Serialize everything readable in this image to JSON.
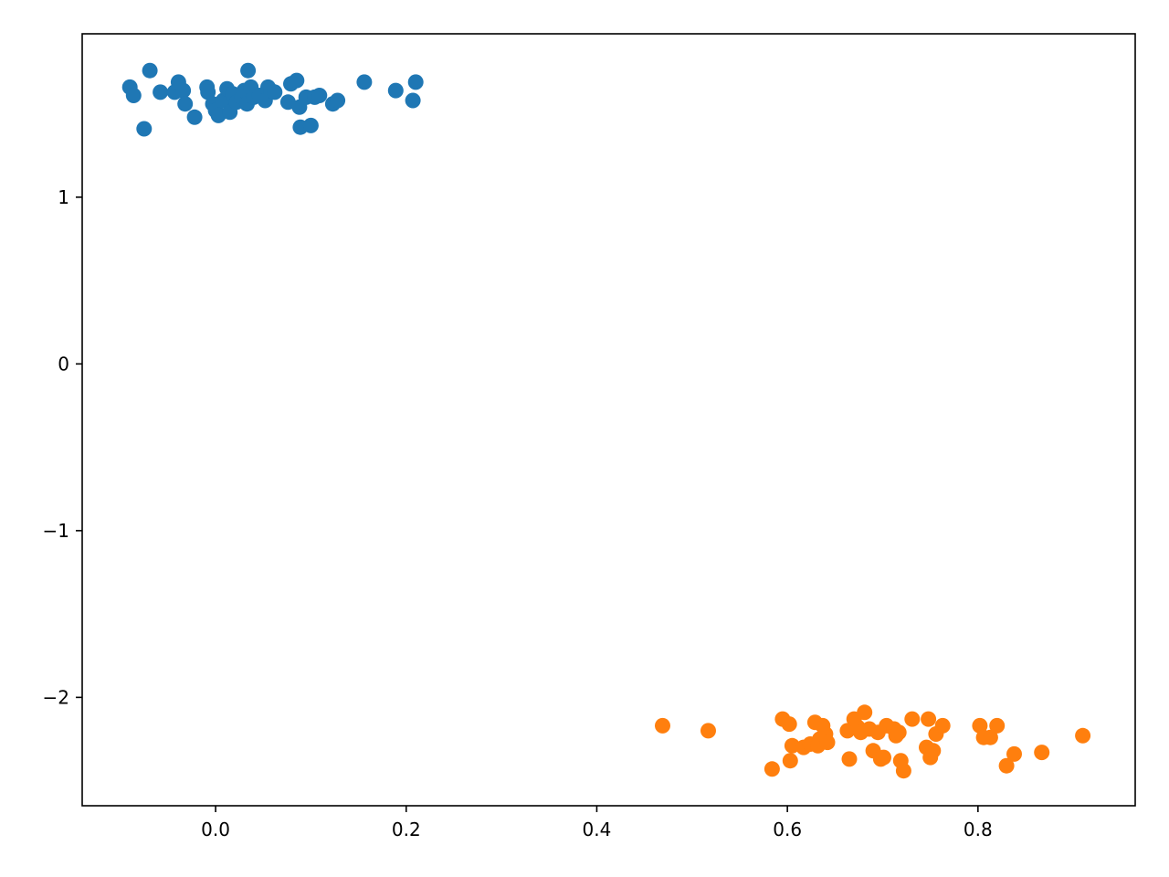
{
  "chart_data": {
    "type": "scatter",
    "title": "",
    "xlabel": "",
    "ylabel": "",
    "xlim": [
      -0.14,
      0.965
    ],
    "ylim": [
      -2.65,
      1.98
    ],
    "grid": false,
    "legend": "none",
    "x_ticks": [
      {
        "value": 0.0,
        "label": "0.0"
      },
      {
        "value": 0.2,
        "label": "0.2"
      },
      {
        "value": 0.4,
        "label": "0.4"
      },
      {
        "value": 0.6,
        "label": "0.6"
      },
      {
        "value": 0.8,
        "label": "0.8"
      }
    ],
    "y_ticks": [
      {
        "value": 1,
        "label": "1"
      },
      {
        "value": 0,
        "label": "0"
      },
      {
        "value": -1,
        "label": "−1"
      },
      {
        "value": -2,
        "label": "−2"
      }
    ],
    "series": [
      {
        "color": "#1f77b4",
        "points": [
          [
            -0.09,
            1.66
          ],
          [
            -0.086,
            1.61
          ],
          [
            -0.075,
            1.41
          ],
          [
            -0.069,
            1.76
          ],
          [
            -0.058,
            1.63
          ],
          [
            -0.043,
            1.63
          ],
          [
            -0.039,
            1.69
          ],
          [
            -0.034,
            1.64
          ],
          [
            -0.032,
            1.56
          ],
          [
            -0.022,
            1.48
          ],
          [
            -0.009,
            1.66
          ],
          [
            -0.008,
            1.63
          ],
          [
            -0.003,
            1.56
          ],
          [
            0.0,
            1.52
          ],
          [
            0.003,
            1.49
          ],
          [
            0.008,
            1.58
          ],
          [
            0.012,
            1.65
          ],
          [
            0.015,
            1.51
          ],
          [
            0.018,
            1.62
          ],
          [
            0.022,
            1.57
          ],
          [
            0.028,
            1.6
          ],
          [
            0.03,
            1.64
          ],
          [
            0.033,
            1.56
          ],
          [
            0.034,
            1.76
          ],
          [
            0.037,
            1.66
          ],
          [
            0.04,
            1.6
          ],
          [
            0.046,
            1.61
          ],
          [
            0.052,
            1.58
          ],
          [
            0.055,
            1.66
          ],
          [
            0.058,
            1.64
          ],
          [
            0.062,
            1.63
          ],
          [
            0.076,
            1.57
          ],
          [
            0.079,
            1.68
          ],
          [
            0.085,
            1.7
          ],
          [
            0.088,
            1.54
          ],
          [
            0.089,
            1.42
          ],
          [
            0.095,
            1.6
          ],
          [
            0.1,
            1.43
          ],
          [
            0.104,
            1.6
          ],
          [
            0.109,
            1.61
          ],
          [
            0.123,
            1.56
          ],
          [
            0.128,
            1.58
          ],
          [
            0.156,
            1.69
          ],
          [
            0.189,
            1.64
          ],
          [
            0.207,
            1.58
          ],
          [
            0.21,
            1.69
          ]
        ]
      },
      {
        "color": "#ff7f0e",
        "points": [
          [
            0.469,
            -2.17
          ],
          [
            0.517,
            -2.2
          ],
          [
            0.584,
            -2.43
          ],
          [
            0.595,
            -2.13
          ],
          [
            0.602,
            -2.16
          ],
          [
            0.603,
            -2.38
          ],
          [
            0.605,
            -2.29
          ],
          [
            0.617,
            -2.3
          ],
          [
            0.624,
            -2.28
          ],
          [
            0.629,
            -2.15
          ],
          [
            0.632,
            -2.29
          ],
          [
            0.634,
            -2.25
          ],
          [
            0.637,
            -2.17
          ],
          [
            0.64,
            -2.22
          ],
          [
            0.642,
            -2.27
          ],
          [
            0.663,
            -2.2
          ],
          [
            0.665,
            -2.37
          ],
          [
            0.67,
            -2.13
          ],
          [
            0.674,
            -2.18
          ],
          [
            0.677,
            -2.21
          ],
          [
            0.681,
            -2.09
          ],
          [
            0.686,
            -2.19
          ],
          [
            0.69,
            -2.32
          ],
          [
            0.695,
            -2.21
          ],
          [
            0.698,
            -2.37
          ],
          [
            0.701,
            -2.36
          ],
          [
            0.704,
            -2.17
          ],
          [
            0.712,
            -2.19
          ],
          [
            0.714,
            -2.23
          ],
          [
            0.717,
            -2.21
          ],
          [
            0.719,
            -2.38
          ],
          [
            0.722,
            -2.44
          ],
          [
            0.731,
            -2.13
          ],
          [
            0.746,
            -2.3
          ],
          [
            0.748,
            -2.13
          ],
          [
            0.75,
            -2.36
          ],
          [
            0.753,
            -2.32
          ],
          [
            0.756,
            -2.22
          ],
          [
            0.763,
            -2.17
          ],
          [
            0.802,
            -2.17
          ],
          [
            0.806,
            -2.24
          ],
          [
            0.813,
            -2.24
          ],
          [
            0.82,
            -2.17
          ],
          [
            0.83,
            -2.41
          ],
          [
            0.838,
            -2.34
          ],
          [
            0.867,
            -2.33
          ],
          [
            0.91,
            -2.23
          ]
        ]
      }
    ]
  }
}
